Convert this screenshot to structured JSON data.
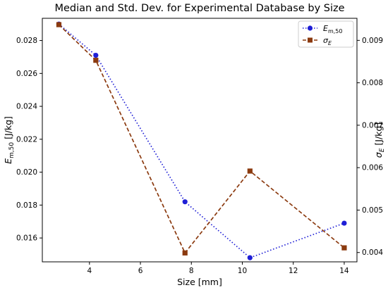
{
  "chart_data": {
    "type": "line",
    "title": "Median and Std. Dev. for Experimental Database by Size",
    "xlabel": "Size [mm]",
    "xlim": [
      2.15,
      14.5
    ],
    "xticks": [
      4,
      6,
      8,
      10,
      12,
      14
    ],
    "grid": false,
    "legend_position": "top-right",
    "series": [
      {
        "name": "E_{m,50}",
        "axis": "left",
        "color": "#1f1fd6",
        "line_style": "dotted",
        "marker": "circle",
        "x": [
          2.8,
          4.25,
          7.75,
          10.3,
          14.0
        ],
        "values": [
          0.029,
          0.0271,
          0.0182,
          0.0148,
          0.0169
        ]
      },
      {
        "name": "σ_E",
        "axis": "right",
        "color": "#8b3a0f",
        "line_style": "dashed",
        "marker": "square",
        "x": [
          2.8,
          4.25,
          7.75,
          10.3,
          14.0
        ],
        "values": [
          0.00937,
          0.00853,
          0.00399,
          0.00592,
          0.00411
        ]
      }
    ],
    "y_left": {
      "label": "E_{m,50} [J/kg]",
      "lim": [
        0.01455,
        0.02935
      ],
      "ticks": [
        0.016,
        0.018,
        0.02,
        0.022,
        0.024,
        0.026,
        0.028
      ],
      "tick_labels": [
        "0.016",
        "0.018",
        "0.020",
        "0.022",
        "0.024",
        "0.026",
        "0.028"
      ]
    },
    "y_right": {
      "label": "σ_E [J/kg]",
      "lim": [
        0.00378,
        0.00952
      ],
      "ticks": [
        0.004,
        0.005,
        0.006,
        0.007,
        0.008,
        0.009
      ],
      "tick_labels": [
        "0.004",
        "0.005",
        "0.006",
        "0.007",
        "0.008",
        "0.009"
      ]
    }
  }
}
